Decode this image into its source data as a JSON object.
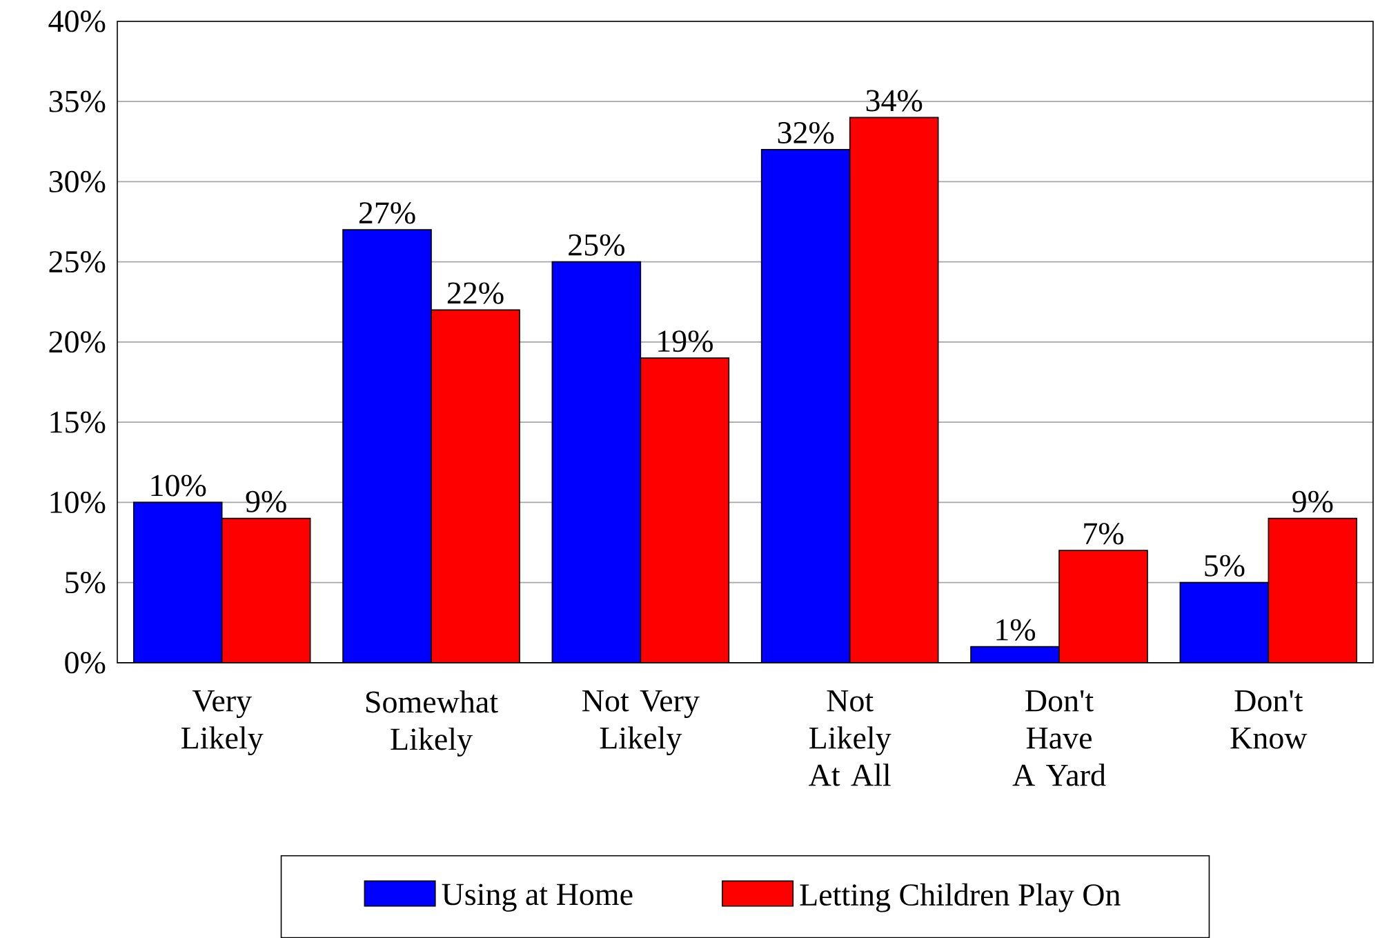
{
  "chart_data": {
    "type": "bar",
    "categories": [
      "Very Likely",
      "Somewhat Likely",
      "Not Very Likely",
      "Not Likely At All",
      "Don't Have A Yard",
      "Don't Know"
    ],
    "series": [
      {
        "name": "Using at Home",
        "color": "#0000ff",
        "values": [
          10,
          27,
          25,
          32,
          1,
          5
        ],
        "value_labels": [
          "10%",
          "27%",
          "25%",
          "32%",
          "1%",
          "5%"
        ]
      },
      {
        "name": "Letting Children Play On",
        "color": "#ff0000",
        "values": [
          9,
          22,
          19,
          34,
          7,
          9
        ],
        "value_labels": [
          "9%",
          "22%",
          "19%",
          "34%",
          "7%",
          "9%"
        ]
      }
    ],
    "ylim": [
      0,
      40
    ],
    "yticks": [
      {
        "value": 0,
        "label": "0%"
      },
      {
        "value": 5,
        "label": "5%"
      },
      {
        "value": 10,
        "label": "10%"
      },
      {
        "value": 15,
        "label": "15%"
      },
      {
        "value": 20,
        "label": "20%"
      },
      {
        "value": 25,
        "label": "25%"
      },
      {
        "value": 30,
        "label": "30%"
      },
      {
        "value": 35,
        "label": "35%"
      },
      {
        "value": 40,
        "label": "40%"
      }
    ],
    "grid": "y",
    "legend": "bottom"
  }
}
